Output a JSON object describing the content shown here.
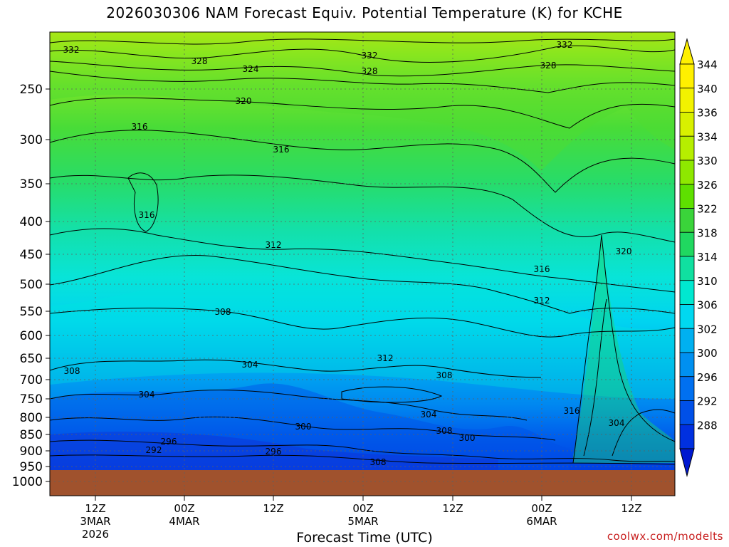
{
  "title": "2026030306 NAM Forecast Equiv. Potential Temperature (K) for KCHE",
  "credit": "coolwx.com/modelts",
  "chart_data": {
    "type": "heatmap",
    "title": "2026030306 NAM Forecast Equiv. Potential Temperature (K) for KCHE",
    "xlabel": "Forecast Time (UTC)",
    "ylabel": "",
    "y_axis": {
      "label": "",
      "scale": "pressure (top 200, bottom 1000)",
      "ylim": [
        1000,
        200
      ],
      "ticks": [
        "250",
        "300",
        "350",
        "400",
        "450",
        "500",
        "550",
        "600",
        "650",
        "700",
        "750",
        "800",
        "850",
        "900",
        "950",
        "1000"
      ]
    },
    "x_axis": {
      "ticks": [
        {
          "line1": "12Z",
          "line2": "3MAR",
          "line3": "2026"
        },
        {
          "line1": "00Z",
          "line2": "4MAR",
          "line3": ""
        },
        {
          "line1": "12Z",
          "line2": "",
          "line3": ""
        },
        {
          "line1": "00Z",
          "line2": "5MAR",
          "line3": ""
        },
        {
          "line1": "12Z",
          "line2": "",
          "line3": ""
        },
        {
          "line1": "00Z",
          "line2": "6MAR",
          "line3": ""
        },
        {
          "line1": "12Z",
          "line2": "",
          "line3": ""
        }
      ]
    },
    "colorbar": {
      "ticks": [
        "344",
        "340",
        "336",
        "334",
        "330",
        "326",
        "322",
        "318",
        "314",
        "310",
        "306",
        "302",
        "300",
        "296",
        "292",
        "288"
      ],
      "colors": [
        "#fff000",
        "#f2f200",
        "#d8f000",
        "#b6ee00",
        "#8ee800",
        "#5ee000",
        "#3ad43a",
        "#20d860",
        "#10e0a0",
        "#00e8d0",
        "#00d8f0",
        "#00b0f0",
        "#0090f0",
        "#0070f0",
        "#0050e8",
        "#0030e0"
      ]
    },
    "contour_labels": [
      "332",
      "328",
      "324",
      "332",
      "328",
      "332",
      "328",
      "320",
      "316",
      "316",
      "316",
      "312",
      "316",
      "320",
      "312",
      "308",
      "304",
      "312",
      "308",
      "304",
      "308",
      "308",
      "304",
      "300",
      "300",
      "296",
      "292",
      "296",
      "308",
      "316",
      "304"
    ],
    "grid": true,
    "ground_color": "#a0522d"
  }
}
